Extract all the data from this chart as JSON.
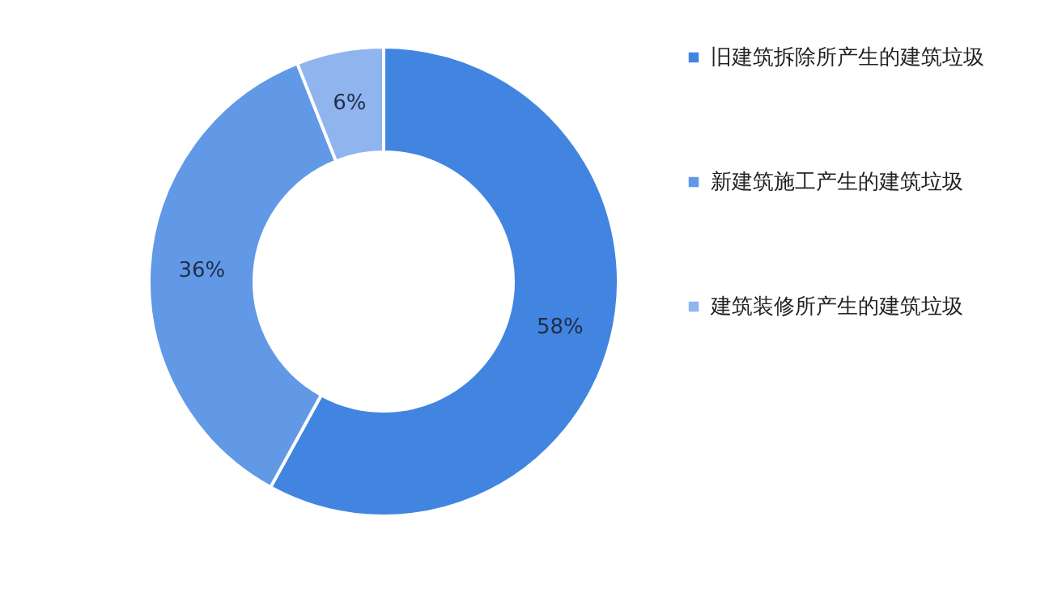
{
  "chart_data": {
    "type": "donut",
    "categories": [
      "旧建筑拆除所产生的建筑垃圾",
      "新建筑施工产生的建筑垃圾",
      "建筑装修所产生的建筑垃圾"
    ],
    "values": [
      58,
      36,
      6
    ],
    "value_labels": [
      "58%",
      "36%",
      "6%"
    ],
    "colors": [
      "#4285e0",
      "#6199e6",
      "#8fb4ee"
    ],
    "legend": "right"
  }
}
